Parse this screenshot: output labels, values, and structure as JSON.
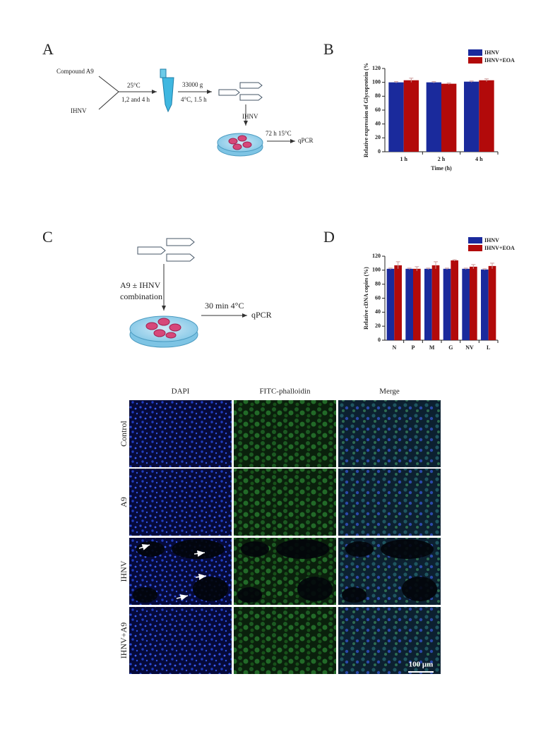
{
  "panel_labels": [
    "A",
    "B",
    "C",
    "D"
  ],
  "diagram_a": {
    "input_1": "Compound A9",
    "input_2": "IHNV",
    "step_1_top": "25°C",
    "step_1_bottom": "1,2 and 4 h",
    "step_2_top": "33000 g",
    "step_2_bottom": "4°C, 1.5 h",
    "step_3": "IHNV",
    "step_4": "72 h 15°C",
    "output": "qPCR"
  },
  "diagram_c": {
    "step_1_line_1": "A9 ± IHNV",
    "step_1_line_2": "combination",
    "step_2": "30 min 4°C",
    "output": "qPCR"
  },
  "microscopy": {
    "columns": [
      "DAPI",
      "FITC-phalloidin",
      "Merge"
    ],
    "rows": [
      "Control",
      "A9",
      "IHNV",
      "IHNV+A9"
    ],
    "scale_bar": "100 μm"
  },
  "chart_data": [
    {
      "type": "bar",
      "y_label": "Relative expression of Glycoprotein (%",
      "x_label": "Time (h)",
      "categories": [
        "1 h",
        "2 h",
        "4 h"
      ],
      "series": [
        {
          "name": "IHNV",
          "color": "#1a2a9c",
          "values": [
            100,
            100,
            101
          ],
          "errors": [
            1,
            1,
            1
          ]
        },
        {
          "name": "IHNV+EOA",
          "color": "#b20a0a",
          "values": [
            103,
            98,
            103
          ],
          "errors": [
            3,
            1,
            2
          ]
        }
      ],
      "ylim": [
        0,
        120
      ],
      "yticks": [
        0,
        20,
        40,
        60,
        80,
        100,
        120
      ],
      "legend": "top-right"
    },
    {
      "type": "bar",
      "y_label": "Relative cDNA copies (%)",
      "categories": [
        "N",
        "P",
        "M",
        "G",
        "NV",
        "L"
      ],
      "series": [
        {
          "name": "IHNV",
          "color": "#1a2a9c",
          "values": [
            102,
            102,
            102,
            102,
            102,
            101
          ],
          "errors": [
            1,
            1,
            1,
            1,
            1,
            1
          ]
        },
        {
          "name": "IHNV+EOA",
          "color": "#b20a0a",
          "values": [
            107,
            102,
            107,
            114,
            105,
            106
          ],
          "errors": [
            5,
            3,
            5,
            1,
            3,
            4
          ]
        }
      ],
      "ylim": [
        0,
        120
      ],
      "yticks": [
        0,
        20,
        40,
        60,
        80,
        100,
        120
      ],
      "legend": "top-right"
    }
  ]
}
